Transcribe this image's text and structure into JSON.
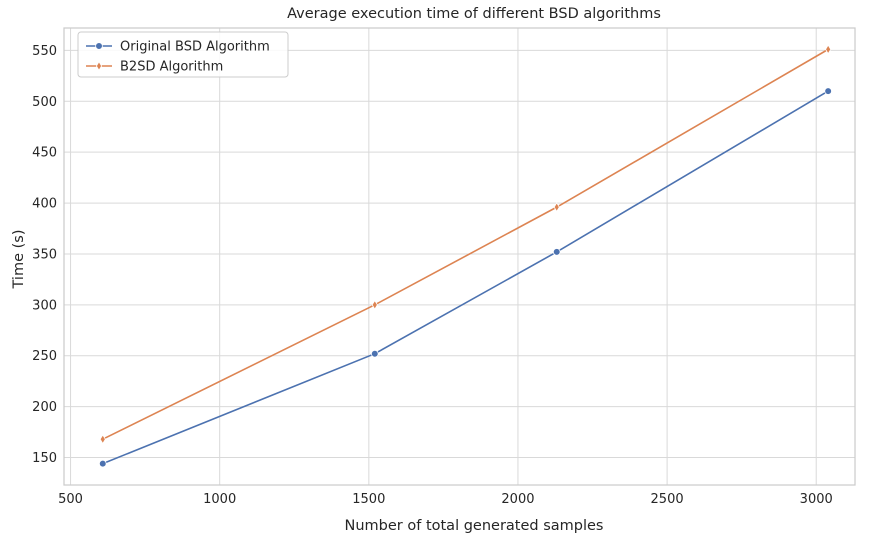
{
  "chart_data": {
    "type": "line",
    "title": "Average execution time of different BSD algorithms",
    "xlabel": "Number of total generated samples",
    "ylabel": "Time (s)",
    "xlim": [
      478,
      3130
    ],
    "ylim": [
      123,
      572
    ],
    "xticks": [
      500,
      1000,
      1500,
      2000,
      2500,
      3000
    ],
    "yticks": [
      150,
      200,
      250,
      300,
      350,
      400,
      450,
      500,
      550
    ],
    "grid": true,
    "legend_position": "top-left",
    "series": [
      {
        "name": "Original BSD Algorithm",
        "color": "#4c72b0",
        "marker": "circle",
        "x": [
          608,
          1520,
          2130,
          3040
        ],
        "y": [
          144,
          252,
          352,
          510
        ]
      },
      {
        "name": "B2SD Algorithm",
        "color": "#dd8452",
        "marker": "diamond",
        "x": [
          608,
          1520,
          2130,
          3040
        ],
        "y": [
          168,
          300,
          396,
          551
        ]
      }
    ]
  }
}
